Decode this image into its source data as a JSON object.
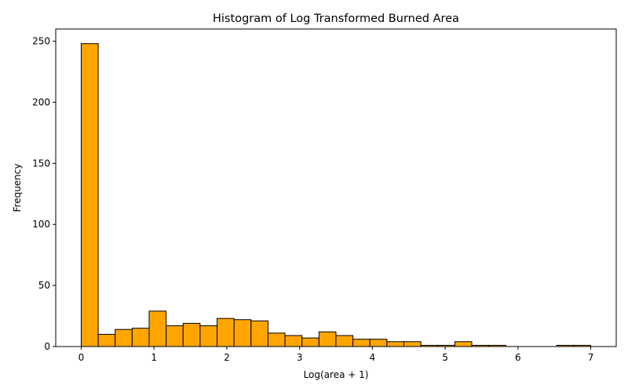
{
  "chart_data": {
    "type": "bar",
    "title": "Histogram of Log Transformed Burned Area",
    "xlabel": "Log(area + 1)",
    "ylabel": "Frequency",
    "xlim": [
      -0.35,
      7.35
    ],
    "ylim": [
      0,
      260
    ],
    "xticks": [
      "0",
      "1",
      "2",
      "3",
      "4",
      "5",
      "6",
      "7"
    ],
    "yticks": [
      "0",
      "50",
      "100",
      "150",
      "200",
      "250"
    ],
    "bin_start": 0,
    "bin_width": 0.2333,
    "values": [
      248,
      10,
      14,
      15,
      29,
      17,
      19,
      17,
      23,
      22,
      21,
      11,
      9,
      7,
      12,
      9,
      6,
      6,
      4,
      4,
      1,
      1,
      4,
      1,
      1,
      0,
      0,
      0,
      1,
      1
    ],
    "bar_color": "#FFA500",
    "edge_color": "#000000",
    "grid": false,
    "legend": "none"
  }
}
